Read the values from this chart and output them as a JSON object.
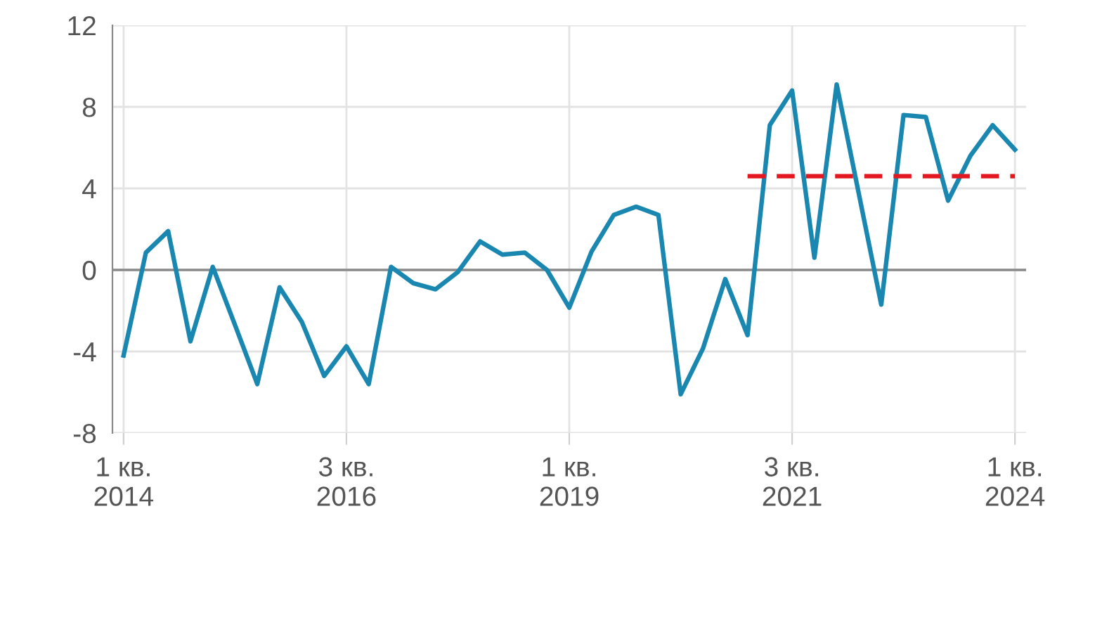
{
  "chart_data": {
    "type": "line",
    "categories": [
      "1 кв.\n2014",
      null,
      null,
      null,
      null,
      null,
      null,
      null,
      null,
      null,
      "3 кв.\n2016",
      null,
      null,
      null,
      null,
      null,
      null,
      null,
      null,
      null,
      "1 кв.\n2019",
      null,
      null,
      null,
      null,
      null,
      null,
      null,
      null,
      null,
      "3 кв.\n2021",
      null,
      null,
      null,
      null,
      null,
      null,
      null,
      null,
      null,
      "1 кв.\n2024"
    ],
    "series": [
      {
        "color": "#1a87b0",
        "line_style": "solid",
        "values": [
          -4.2,
          0.85,
          1.9,
          -3.5,
          0.15,
          -2.7,
          -5.6,
          -0.85,
          -2.55,
          -5.2,
          -3.75,
          -5.6,
          0.15,
          -0.65,
          -0.95,
          -0.1,
          1.4,
          0.75,
          0.85,
          0,
          -1.85,
          0.9,
          2.7,
          3.1,
          2.7,
          -6.1,
          -3.85,
          -0.45,
          -3.2,
          7.1,
          8.8,
          0.6,
          9.1,
          3.7,
          -1.7,
          7.6,
          7.5,
          3.4,
          5.6,
          7.1,
          5.9
        ]
      },
      {
        "color": "#e3171f",
        "line_style": "dashed",
        "values": [
          null,
          null,
          null,
          null,
          null,
          null,
          null,
          null,
          null,
          null,
          null,
          null,
          null,
          null,
          null,
          null,
          null,
          null,
          null,
          null,
          null,
          null,
          null,
          null,
          null,
          null,
          null,
          null,
          4.6,
          4.6,
          4.6,
          4.6,
          4.6,
          4.6,
          4.6,
          4.6,
          4.6,
          4.6,
          4.6,
          4.6,
          4.6
        ]
      }
    ],
    "ylim": [
      -8,
      12
    ],
    "yticks": [
      -8,
      -4,
      0,
      4,
      8,
      12
    ],
    "ref_lines": [
      {
        "axis": "y",
        "value": 0,
        "color": "#8a8a8a"
      }
    ],
    "grid": true,
    "legend": false,
    "marker": "none"
  }
}
